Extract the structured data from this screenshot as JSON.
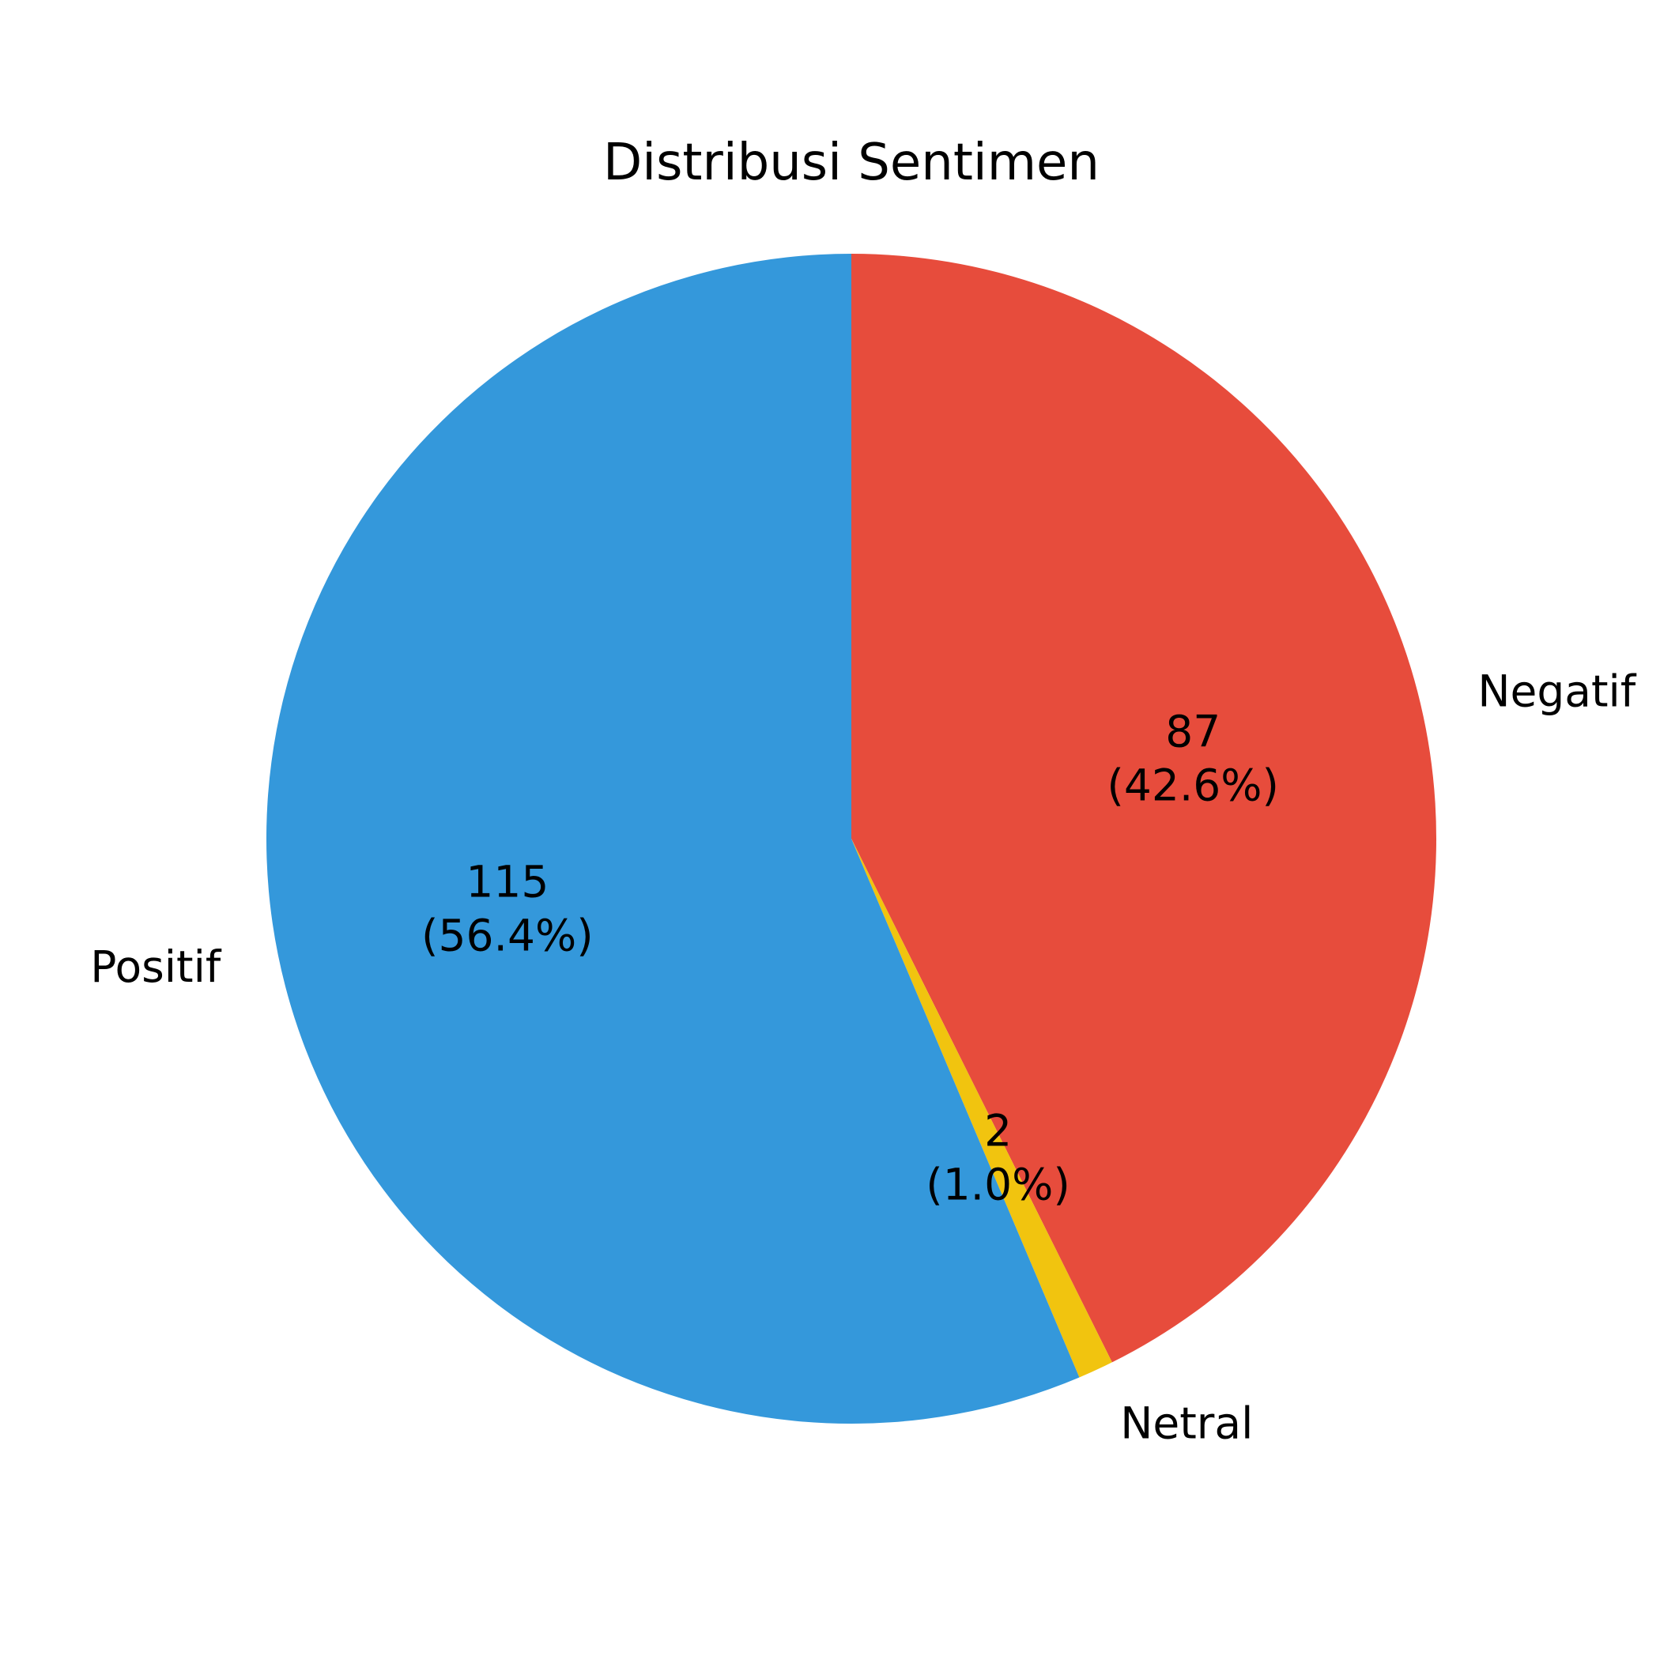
{
  "chart_data": {
    "type": "pie",
    "title": "Distribusi Sentimen",
    "slices": [
      {
        "label": "Negatif",
        "value": 87,
        "percent_label": "(42.6%)",
        "color": "#e74c3c"
      },
      {
        "label": "Netral",
        "value": 2,
        "percent_label": "(1.0%)",
        "color": "#f1c40f"
      },
      {
        "label": "Positif",
        "value": 115,
        "percent_label": "(56.4%)",
        "color": "#3498db"
      }
    ],
    "start_angle_deg": 90,
    "direction": "clockwise"
  }
}
